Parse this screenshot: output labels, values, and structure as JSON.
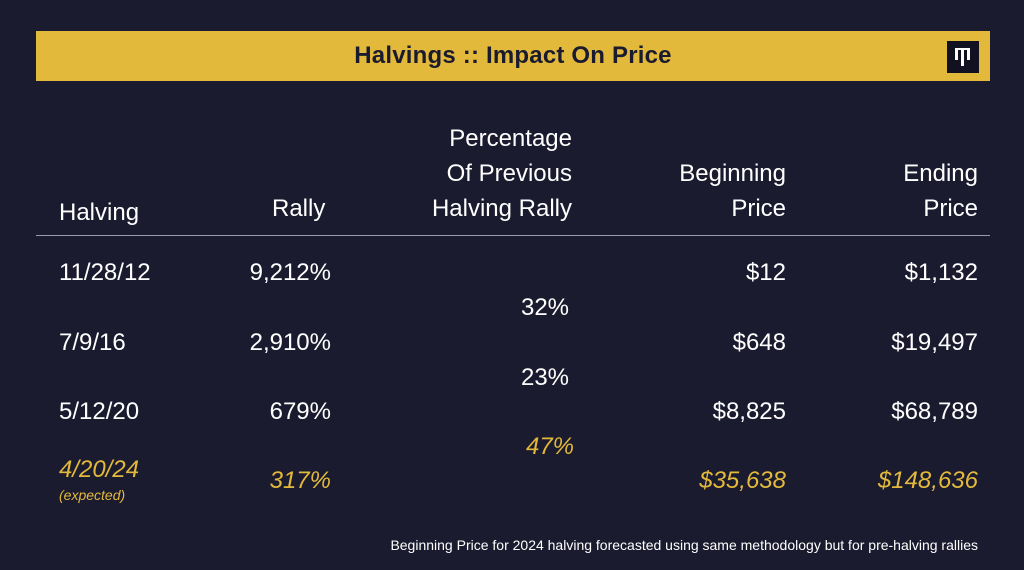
{
  "banner": {
    "title": "Halvings :: Impact On Price",
    "logo_icon": "brand-logo-icon"
  },
  "table": {
    "headers": {
      "halving": "Halving",
      "rally": "Rally",
      "pct_line1": "Percentage",
      "pct_line2": "Of Previous",
      "pct_line3": "Halving Rally",
      "begin_line1": "Beginning",
      "begin_line2": "Price",
      "end_line1": "Ending",
      "end_line2": "Price"
    },
    "rows": [
      {
        "date": "11/28/12",
        "rally": "9,212%",
        "begin": "$12",
        "end": "$1,132"
      },
      {
        "date": "7/9/16",
        "rally": "2,910%",
        "begin": "$648",
        "end": "$19,497"
      },
      {
        "date": "5/12/20",
        "rally": "679%",
        "begin": "$8,825",
        "end": "$68,789"
      },
      {
        "date": "4/20/24",
        "date_note": "(expected)",
        "rally": "317%",
        "begin": "$35,638",
        "end": "$148,636"
      }
    ],
    "percentages": [
      "32%",
      "23%",
      "47%"
    ]
  },
  "footnote": "Beginning Price for 2024 halving forecasted using same methodology but for pre-halving rallies",
  "colors": {
    "background": "#1b1b2f",
    "accent": "#e2b93b",
    "text": "#ffffff"
  }
}
